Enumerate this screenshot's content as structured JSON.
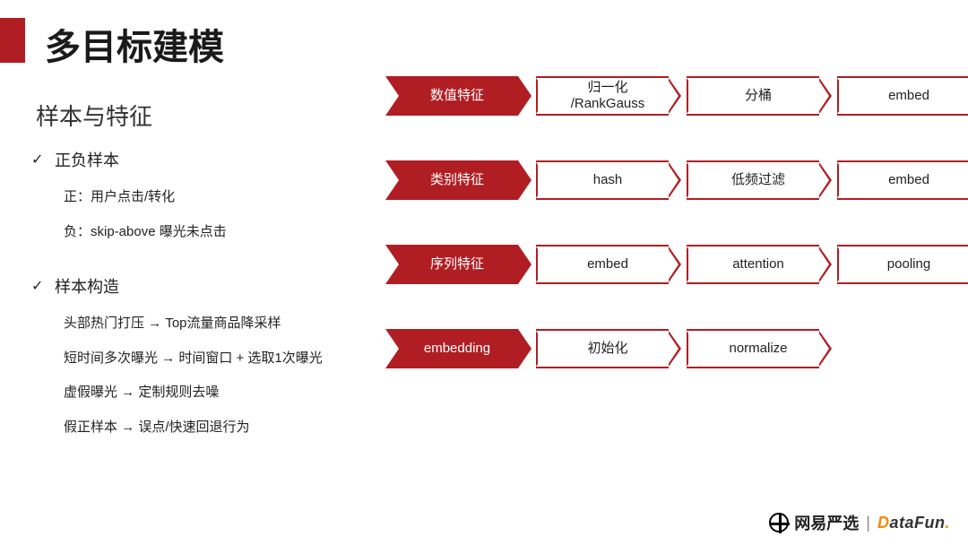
{
  "colors": {
    "accent": "#b01e23",
    "text": "#222222",
    "bg": "#ffffff",
    "brand2_orange": "#f28c00"
  },
  "title": "多目标建模",
  "subtitle": "样本与特征",
  "left": {
    "sections": [
      {
        "head": "正负样本",
        "lines": [
          "正：用户点击/转化",
          "负：skip-above 曝光未点击"
        ]
      },
      {
        "head": "样本构造",
        "lines": [
          "头部热门打压 → Top流量商品降采样",
          "短时间多次曝光 → 时间窗口 + 选取1次曝光",
          "虚假曝光 → 定制规则去噪",
          "假正样本 → 误点/快速回退行为"
        ]
      }
    ]
  },
  "pipelines": [
    {
      "head_width": 148,
      "step_width": 148,
      "head": "数值特征",
      "steps": [
        "归一化\n/RankGauss",
        "分桶",
        "embed"
      ]
    },
    {
      "head_width": 148,
      "step_width": 148,
      "head": "类别特征",
      "steps": [
        "hash",
        "低频过滤",
        "embed"
      ]
    },
    {
      "head_width": 148,
      "step_width": 148,
      "head": "序列特征",
      "steps": [
        "embed",
        "attention",
        "pooling"
      ]
    },
    {
      "head_width": 148,
      "step_width": 148,
      "head": "embedding",
      "steps": [
        "初始化",
        "normalize"
      ]
    }
  ],
  "footer": {
    "brand1": "网易严选",
    "brand2_d": "D",
    "brand2_rest": "ataFun",
    "brand2_dot": "."
  }
}
